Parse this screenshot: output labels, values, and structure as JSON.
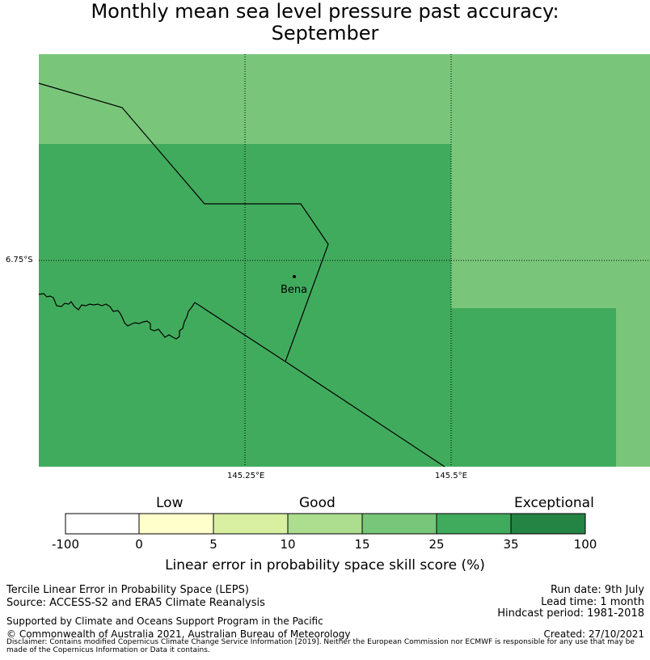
{
  "title": {
    "line1": "Monthly mean sea level pressure past accuracy:",
    "line2": "September"
  },
  "map": {
    "latitude_label": "6.75°S",
    "longitude_labels": [
      "145.25°E",
      "145.5°E"
    ],
    "place": "Bena",
    "colors": {
      "light_green": "#79c67b",
      "mid_green": "#41ab5d"
    }
  },
  "colorbar": {
    "categories": [
      "Low",
      "Good",
      "Exceptional"
    ],
    "ticks": [
      "-100",
      "0",
      "5",
      "10",
      "15",
      "25",
      "35",
      "100"
    ],
    "colors": [
      "#ffffff",
      "#ffffcc",
      "#d9f0a3",
      "#addd8e",
      "#78c679",
      "#41ab5d",
      "#238443"
    ],
    "label": "Linear error in probability space skill score (%)"
  },
  "info": {
    "method": "Tercile Linear Error in Probability Space (LEPS)",
    "source": "Source: ACCESS-S2 and ERA5 Climate Reanalysis",
    "run_date": "Run date: 9th July",
    "lead_time": "Lead time: 1 month",
    "hindcast": "Hindcast period: 1981-2018",
    "support": "Supported by Climate and Oceans Support Program in the Pacific",
    "copyright": "© Commonwealth of Australia 2021, Australian Bureau of Meteorology",
    "created": "Created: 27/10/2021",
    "disclaimer": "Disclaimer: Contains modified Copernicus Climate Change Service Information [2019]. Neither the European Commission nor ECMWF is responsible for any use that may be made of the Copernicus Information or Data it contains."
  }
}
